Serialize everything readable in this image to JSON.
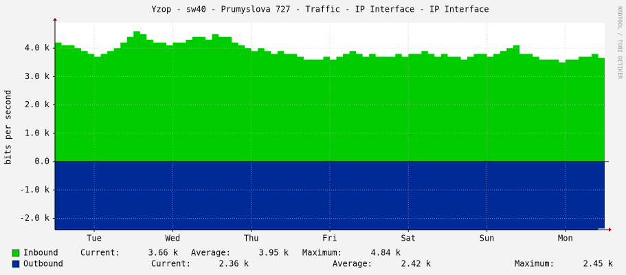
{
  "chart_data": {
    "type": "area",
    "title": "Yzop - sw40 - Prumyslova 727 - Traffic - IP Interface - IP Interface",
    "y_label": "bits per second",
    "watermark": "RRDTOOL / TOBI OETIKER",
    "xlim": [
      0,
      168
    ],
    "xticks": [
      {
        "value": 12,
        "label": "Tue"
      },
      {
        "value": 36,
        "label": "Wed"
      },
      {
        "value": 60,
        "label": "Thu"
      },
      {
        "value": 84,
        "label": "Fri"
      },
      {
        "value": 108,
        "label": "Sat"
      },
      {
        "value": 132,
        "label": "Sun"
      },
      {
        "value": 156,
        "label": "Mon"
      }
    ],
    "ylim": [
      -2.4,
      4.9
    ],
    "yticks": [
      {
        "value": -2,
        "label": "-2.0 k"
      },
      {
        "value": -1,
        "label": "-1.0 k"
      },
      {
        "value": 0,
        "label": "0.0"
      },
      {
        "value": 1,
        "label": "1.0 k"
      },
      {
        "value": 2,
        "label": "2.0 k"
      },
      {
        "value": 3,
        "label": "3.0 k"
      },
      {
        "value": 4,
        "label": "4.0 k"
      }
    ],
    "grid": true,
    "x": [
      0,
      2,
      4,
      6,
      8,
      10,
      12,
      14,
      16,
      18,
      20,
      22,
      24,
      26,
      28,
      30,
      32,
      34,
      36,
      38,
      40,
      42,
      44,
      46,
      48,
      50,
      52,
      54,
      56,
      58,
      60,
      62,
      64,
      66,
      68,
      70,
      72,
      74,
      76,
      78,
      80,
      82,
      84,
      86,
      88,
      90,
      92,
      94,
      96,
      98,
      100,
      102,
      104,
      106,
      108,
      110,
      112,
      114,
      116,
      118,
      120,
      122,
      124,
      126,
      128,
      130,
      132,
      134,
      136,
      138,
      140,
      142,
      144,
      146,
      148,
      150,
      152,
      154,
      156,
      158,
      160,
      162,
      164,
      166
    ],
    "series": [
      {
        "name": "Inbound",
        "color": "#00cc00",
        "values": [
          4.2,
          4.1,
          4.1,
          4.0,
          3.9,
          3.8,
          3.7,
          3.8,
          3.9,
          4.0,
          4.2,
          4.4,
          4.6,
          4.5,
          4.3,
          4.2,
          4.2,
          4.1,
          4.2,
          4.2,
          4.3,
          4.4,
          4.4,
          4.3,
          4.5,
          4.4,
          4.4,
          4.2,
          4.1,
          4.0,
          3.9,
          4.0,
          3.9,
          3.8,
          3.9,
          3.8,
          3.8,
          3.7,
          3.6,
          3.6,
          3.6,
          3.7,
          3.6,
          3.7,
          3.8,
          3.9,
          3.8,
          3.7,
          3.8,
          3.7,
          3.7,
          3.7,
          3.8,
          3.7,
          3.8,
          3.8,
          3.9,
          3.8,
          3.7,
          3.8,
          3.7,
          3.7,
          3.6,
          3.7,
          3.8,
          3.8,
          3.7,
          3.8,
          3.9,
          4.0,
          4.1,
          3.8,
          3.8,
          3.7,
          3.6,
          3.6,
          3.6,
          3.5,
          3.6,
          3.6,
          3.7,
          3.7,
          3.8,
          3.66
        ],
        "legend": [
          {
            "label": "Current:",
            "value": "3.66 k"
          },
          {
            "label": "Average:",
            "value": "3.95 k"
          },
          {
            "label": "Maximum:",
            "value": "4.84 k"
          }
        ]
      },
      {
        "name": "Outbound",
        "color": "#002a97",
        "values": [
          -2.42,
          -2.42,
          -2.42,
          -2.42,
          -2.42,
          -2.42,
          -2.42,
          -2.42,
          -2.42,
          -2.42,
          -2.42,
          -2.42,
          -2.42,
          -2.42,
          -2.42,
          -2.42,
          -2.42,
          -2.42,
          -2.42,
          -2.42,
          -2.42,
          -2.42,
          -2.42,
          -2.42,
          -2.42,
          -2.42,
          -2.42,
          -2.42,
          -2.42,
          -2.42,
          -2.42,
          -2.42,
          -2.42,
          -2.42,
          -2.42,
          -2.42,
          -2.42,
          -2.42,
          -2.42,
          -2.42,
          -2.42,
          -2.42,
          -2.42,
          -2.42,
          -2.42,
          -2.42,
          -2.42,
          -2.42,
          -2.42,
          -2.42,
          -2.42,
          -2.42,
          -2.42,
          -2.42,
          -2.42,
          -2.42,
          -2.42,
          -2.42,
          -2.42,
          -2.42,
          -2.42,
          -2.42,
          -2.42,
          -2.42,
          -2.42,
          -2.42,
          -2.42,
          -2.42,
          -2.42,
          -2.42,
          -2.42,
          -2.42,
          -2.42,
          -2.42,
          -2.42,
          -2.42,
          -2.42,
          -2.42,
          -2.42,
          -2.42,
          -2.42,
          -2.42,
          -2.42,
          -2.36
        ],
        "legend": [
          {
            "label": "Current:",
            "value": "2.36 k"
          },
          {
            "label": "Average:",
            "value": "2.42 k"
          },
          {
            "label": "Maximum:",
            "value": "2.45 k"
          }
        ]
      }
    ]
  }
}
